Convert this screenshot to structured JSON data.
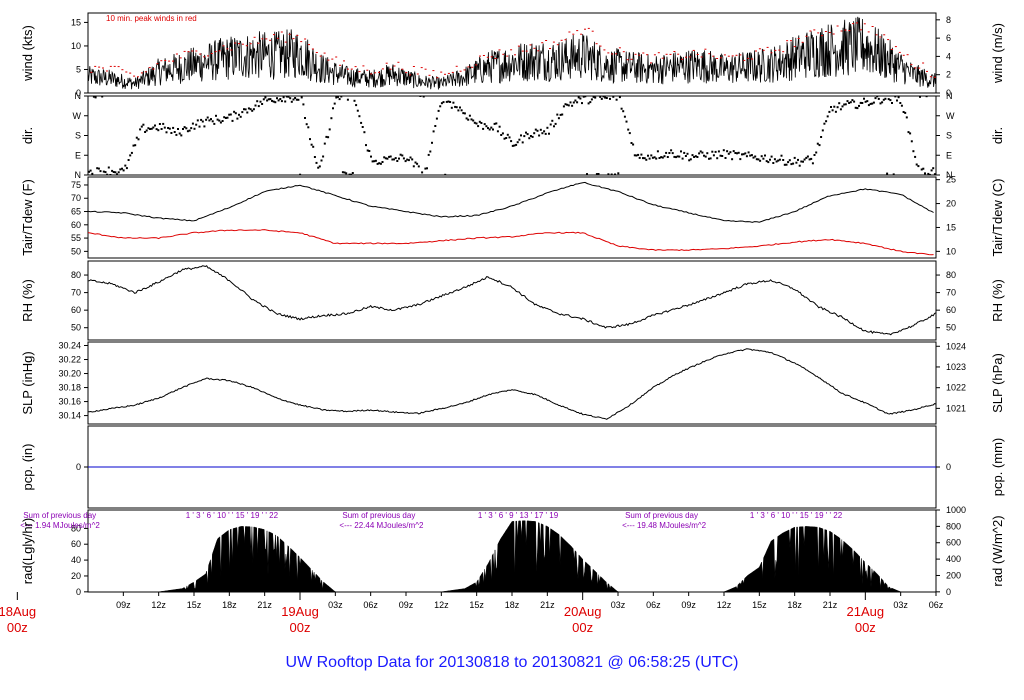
{
  "page": {
    "title": "UW Rooftop Data for 20130818  to  20130821 @ 06:58:25  (UTC)",
    "colors": {
      "series": "#000000",
      "peak": "#dd0000",
      "dewpoint": "#dd0000",
      "precip": "#0000cc",
      "annotation": "#8b00b4",
      "day_label": "#dd0000",
      "title": "#1a1aff"
    }
  },
  "time_axis": {
    "x_range_hours": [
      6,
      78
    ],
    "hour_ticks": [
      {
        "h": 9,
        "label": "09z"
      },
      {
        "h": 12,
        "label": "12z"
      },
      {
        "h": 15,
        "label": "15z"
      },
      {
        "h": 18,
        "label": "18z"
      },
      {
        "h": 21,
        "label": "21z"
      },
      {
        "h": 27,
        "label": "03z"
      },
      {
        "h": 30,
        "label": "06z"
      },
      {
        "h": 33,
        "label": "09z"
      },
      {
        "h": 36,
        "label": "12z"
      },
      {
        "h": 39,
        "label": "15z"
      },
      {
        "h": 42,
        "label": "18z"
      },
      {
        "h": 45,
        "label": "21z"
      },
      {
        "h": 51,
        "label": "03z"
      },
      {
        "h": 54,
        "label": "06z"
      },
      {
        "h": 57,
        "label": "09z"
      },
      {
        "h": 60,
        "label": "12z"
      },
      {
        "h": 63,
        "label": "15z"
      },
      {
        "h": 66,
        "label": "18z"
      },
      {
        "h": 69,
        "label": "21z"
      },
      {
        "h": 75,
        "label": "03z"
      },
      {
        "h": 78,
        "label": "06z"
      }
    ],
    "day_labels": [
      {
        "h": 0,
        "date": "18Aug",
        "time": "00z"
      },
      {
        "h": 24,
        "date": "19Aug",
        "time": "00z"
      },
      {
        "h": 48,
        "date": "20Aug",
        "time": "00z"
      },
      {
        "h": 72,
        "date": "21Aug",
        "time": "00z"
      }
    ]
  },
  "panels": [
    {
      "key": "wind",
      "left_label": "wind (kts)",
      "right_label": "wind (m/s)",
      "ylim": [
        0,
        17
      ],
      "left_ticks": [
        {
          "v": 0,
          "t": "0"
        },
        {
          "v": 5,
          "t": "5"
        },
        {
          "v": 10,
          "t": "10"
        },
        {
          "v": 15,
          "t": "15"
        }
      ],
      "right_ticks": [
        {
          "v": 0,
          "t": "0"
        },
        {
          "v": 3.89,
          "t": "2"
        },
        {
          "v": 7.78,
          "t": "4"
        },
        {
          "v": 11.66,
          "t": "6"
        },
        {
          "v": 15.55,
          "t": "8"
        }
      ],
      "note": "10 min. peak winds in red"
    },
    {
      "key": "dir",
      "left_label": "dir.",
      "right_label": "dir.",
      "ylim": [
        0,
        360
      ],
      "left_ticks": [
        {
          "v": 0,
          "t": "N"
        },
        {
          "v": 90,
          "t": "E"
        },
        {
          "v": 180,
          "t": "S"
        },
        {
          "v": 270,
          "t": "W"
        },
        {
          "v": 360,
          "t": "N"
        }
      ],
      "right_ticks": [
        {
          "v": 0,
          "t": "N"
        },
        {
          "v": 90,
          "t": "E"
        },
        {
          "v": 180,
          "t": "S"
        },
        {
          "v": 270,
          "t": "W"
        },
        {
          "v": 360,
          "t": "N"
        }
      ]
    },
    {
      "key": "temp",
      "left_label": "Tair/Tdew (F)",
      "right_label": "Tair/Tdew (C)",
      "ylim": [
        47.5,
        78
      ],
      "left_ticks": [
        {
          "v": 50,
          "t": "50"
        },
        {
          "v": 55,
          "t": "55"
        },
        {
          "v": 60,
          "t": "60"
        },
        {
          "v": 65,
          "t": "65"
        },
        {
          "v": 70,
          "t": "70"
        },
        {
          "v": 75,
          "t": "75"
        }
      ],
      "right_ticks": [
        {
          "v": 50,
          "t": "10"
        },
        {
          "v": 59,
          "t": "15"
        },
        {
          "v": 68,
          "t": "20"
        },
        {
          "v": 77,
          "t": "25"
        }
      ]
    },
    {
      "key": "rh",
      "left_label": "RH (%)",
      "right_label": "RH (%)",
      "ylim": [
        43,
        88
      ],
      "left_ticks": [
        {
          "v": 50,
          "t": "50"
        },
        {
          "v": 60,
          "t": "60"
        },
        {
          "v": 70,
          "t": "70"
        },
        {
          "v": 80,
          "t": "80"
        }
      ],
      "right_ticks": [
        {
          "v": 50,
          "t": "50"
        },
        {
          "v": 60,
          "t": "60"
        },
        {
          "v": 70,
          "t": "70"
        },
        {
          "v": 80,
          "t": "80"
        }
      ]
    },
    {
      "key": "slp",
      "left_label": "SLP (inHg)",
      "right_label": "SLP (hPa)",
      "ylim": [
        30.128,
        30.245
      ],
      "left_ticks": [
        {
          "v": 30.14,
          "t": "30.14"
        },
        {
          "v": 30.16,
          "t": "30.16"
        },
        {
          "v": 30.18,
          "t": "30.18"
        },
        {
          "v": 30.2,
          "t": "30.20"
        },
        {
          "v": 30.22,
          "t": "30.22"
        },
        {
          "v": 30.24,
          "t": "30.24"
        }
      ],
      "right_ticks": [
        {
          "v": 30.1503,
          "t": "1021"
        },
        {
          "v": 30.1798,
          "t": "1022"
        },
        {
          "v": 30.2094,
          "t": "1023"
        },
        {
          "v": 30.2389,
          "t": "1024"
        }
      ]
    },
    {
      "key": "pcp",
      "left_label": "pcp. (in)",
      "right_label": "pcp. (mm)",
      "ylim": [
        -1,
        1
      ],
      "left_ticks": [
        {
          "v": 0,
          "t": "0"
        }
      ],
      "right_ticks": [
        {
          "v": 0,
          "t": "0"
        }
      ]
    },
    {
      "key": "rad",
      "left_label": "rad(Lgly/hr)",
      "right_label": "rad (W/m^2)",
      "ylim": [
        -2,
        1000
      ],
      "left_ticks": [
        {
          "v": 0,
          "t": "0"
        },
        {
          "v": 194,
          "t": "20"
        },
        {
          "v": 388,
          "t": "40"
        },
        {
          "v": 582,
          "t": "60"
        },
        {
          "v": 775,
          "t": "80"
        }
      ],
      "right_ticks": [
        {
          "v": 0,
          "t": "0"
        },
        {
          "v": 200,
          "t": "200"
        },
        {
          "v": 400,
          "t": "400"
        },
        {
          "v": 600,
          "t": "600"
        },
        {
          "v": 800,
          "t": "800"
        },
        {
          "v": 1000,
          "t": "1000"
        }
      ]
    }
  ],
  "rad_annotations": [
    {
      "h": 0.5,
      "line1": "Sum of previous day",
      "line2": "<--- 1.94 MJoules/m^2"
    },
    {
      "h": 27.6,
      "line1": "Sum of previous day",
      "line2": "<--- 22.44 MJoules/m^2"
    },
    {
      "h": 51.6,
      "line1": "Sum of previous day",
      "line2": "<--- 19.48 MJoules/m^2"
    }
  ],
  "rad_hour_marks": [
    {
      "label": "1 ' 3 ' 6 ' 10 ' ' 15 ' 19 ' ' 22",
      "h": 14.3
    },
    {
      "label": "1 ' 3 ' 6 ' 9 ' 13 ' 17 ' 19",
      "h": 39.1
    },
    {
      "label": "1 ' 3 ' 6 ' 10 ' ' 15 ' 19 ' ' 22",
      "h": 62.2
    }
  ],
  "chart_data": {
    "type": "line",
    "title": "UW Rooftop Data for 20130818  to  20130821 @ 06:58:25  (UTC)",
    "x_unit": "hours since 18Aug 00z",
    "series": [
      {
        "name": "wind (kts)",
        "x": [
          6,
          8,
          10,
          12,
          14,
          16,
          18,
          20,
          22,
          24,
          26,
          28,
          30,
          32,
          34,
          36,
          38,
          40,
          42,
          44,
          46,
          48,
          50,
          52,
          54,
          56,
          58,
          60,
          62,
          64,
          66,
          68,
          70,
          72,
          74,
          76,
          78
        ],
        "values": [
          3.5,
          3,
          2,
          4.5,
          5.5,
          6.5,
          7.5,
          8,
          8,
          8.5,
          5,
          3.5,
          3,
          4,
          2.5,
          2,
          3.5,
          5.5,
          6.5,
          7,
          7,
          8,
          6,
          5.5,
          5,
          5.5,
          6,
          5,
          5.5,
          6,
          7.5,
          9,
          9.5,
          10,
          7,
          4,
          2.5
        ]
      },
      {
        "name": "10 min. peak winds",
        "x": [
          6,
          8,
          10,
          12,
          14,
          16,
          18,
          20,
          22,
          24,
          26,
          28,
          30,
          32,
          34,
          36,
          38,
          40,
          42,
          44,
          46,
          48,
          50,
          52,
          54,
          56,
          58,
          60,
          62,
          64,
          66,
          68,
          70,
          72,
          74,
          76,
          78
        ],
        "values": [
          5.5,
          5,
          3.5,
          6.5,
          8,
          9,
          10,
          11,
          12,
          12,
          8,
          5.5,
          5,
          6,
          4.5,
          4,
          6,
          8,
          9,
          10,
          11,
          14,
          9.5,
          8,
          7.5,
          8,
          8.5,
          7.5,
          8,
          9,
          11,
          13,
          14,
          14.5,
          10.5,
          6.5,
          4
        ]
      },
      {
        "name": "dir.",
        "x": [
          6,
          7.5,
          9,
          10.5,
          12,
          13.5,
          15,
          16.5,
          18,
          19.5,
          21,
          22.5,
          24,
          25.5,
          27,
          28.5,
          30,
          31.5,
          33,
          34.5,
          36,
          37.5,
          39,
          40.5,
          42,
          43.5,
          45,
          46.5,
          48,
          49.5,
          51,
          52.5,
          54,
          55.5,
          57,
          58.5,
          60,
          61.5,
          63,
          64.5,
          66,
          67.5,
          69,
          70.5,
          72,
          73.5,
          75,
          76.5,
          78
        ],
        "values": [
          10,
          20,
          15,
          210,
          220,
          190,
          230,
          250,
          260,
          300,
          340,
          355,
          350,
          5,
          355,
          355,
          60,
          70,
          80,
          0,
          355,
          300,
          230,
          220,
          140,
          190,
          200,
          320,
          345,
          350,
          355,
          80,
          90,
          100,
          85,
          90,
          95,
          85,
          80,
          70,
          60,
          70,
          300,
          320,
          330,
          350,
          340,
          10,
          20
        ]
      },
      {
        "name": "Tair (F)",
        "x": [
          6,
          9,
          12,
          15,
          18,
          21,
          24,
          27,
          30,
          33,
          36,
          39,
          42,
          45,
          48,
          51,
          54,
          57,
          60,
          63,
          66,
          69,
          72,
          75,
          78
        ],
        "values": [
          65,
          64.5,
          62.5,
          61.5,
          66.5,
          72.5,
          75,
          71,
          67,
          65,
          63,
          63.5,
          67,
          72,
          76,
          72.5,
          67.5,
          64.5,
          61.5,
          61,
          65,
          71,
          73.5,
          71.5,
          64
        ]
      },
      {
        "name": "Tdew (F)",
        "x": [
          6,
          9,
          12,
          15,
          18,
          21,
          24,
          27,
          30,
          33,
          36,
          39,
          42,
          45,
          48,
          51,
          54,
          57,
          60,
          63,
          66,
          69,
          72,
          75,
          78
        ],
        "values": [
          57,
          55,
          55,
          57,
          58,
          58,
          57,
          53,
          53,
          53,
          54,
          55,
          55.5,
          57,
          57,
          52,
          50.5,
          50.5,
          51,
          52,
          53.5,
          54.5,
          53,
          50,
          48.5
        ]
      },
      {
        "name": "RH (%)",
        "x": [
          6,
          8,
          10,
          12,
          14,
          16,
          18,
          20,
          22,
          24,
          26,
          28,
          30,
          32,
          34,
          36,
          38,
          40,
          42,
          44,
          46,
          48,
          50,
          52,
          54,
          56,
          58,
          60,
          62,
          64,
          66,
          68,
          70,
          72,
          74,
          76,
          78
        ],
        "values": [
          77,
          75,
          70,
          76,
          83,
          85,
          77,
          66,
          58,
          55,
          57,
          58,
          62,
          60,
          63,
          68,
          73,
          79,
          73,
          63,
          58,
          55,
          50,
          52,
          57,
          61,
          65,
          70,
          75,
          77,
          72,
          62,
          56,
          48,
          46,
          51,
          58
        ]
      },
      {
        "name": "SLP (inHg)",
        "x": [
          6,
          8,
          10,
          12,
          14,
          16,
          18,
          20,
          22,
          24,
          26,
          28,
          30,
          32,
          34,
          36,
          38,
          40,
          42,
          44,
          46,
          48,
          50,
          52,
          54,
          56,
          58,
          60,
          62,
          64,
          66,
          68,
          70,
          72,
          74,
          76,
          78
        ],
        "values": [
          30.145,
          30.15,
          30.155,
          30.165,
          30.18,
          30.193,
          30.19,
          30.18,
          30.165,
          30.155,
          30.148,
          30.146,
          30.148,
          30.145,
          30.143,
          30.15,
          30.158,
          30.17,
          30.177,
          30.17,
          30.155,
          30.142,
          30.135,
          30.155,
          30.18,
          30.2,
          30.215,
          30.228,
          30.235,
          30.23,
          30.215,
          30.195,
          30.172,
          30.158,
          30.142,
          30.148,
          30.157
        ]
      },
      {
        "name": "pcp. (in)",
        "x": [
          6,
          78
        ],
        "values": [
          0,
          0
        ]
      },
      {
        "name": "rad (W/m^2)",
        "x": [
          6,
          12,
          14,
          15,
          16,
          17,
          18,
          19,
          20,
          21,
          22,
          23,
          24,
          25,
          26,
          27,
          36,
          38,
          39,
          40,
          41,
          42,
          43,
          44,
          45,
          46,
          47,
          48,
          49,
          50,
          51,
          60,
          61,
          62,
          63,
          64,
          65,
          66,
          67,
          68,
          69,
          70,
          71,
          72,
          73,
          74,
          75,
          78
        ],
        "values": [
          0,
          0,
          40,
          120,
          220,
          650,
          760,
          800,
          795,
          760,
          690,
          560,
          420,
          270,
          120,
          0,
          0,
          40,
          120,
          350,
          640,
          860,
          870,
          860,
          800,
          700,
          560,
          400,
          260,
          120,
          0,
          0,
          60,
          200,
          300,
          620,
          720,
          790,
          800,
          790,
          740,
          640,
          510,
          360,
          220,
          60,
          0,
          0
        ]
      }
    ]
  }
}
